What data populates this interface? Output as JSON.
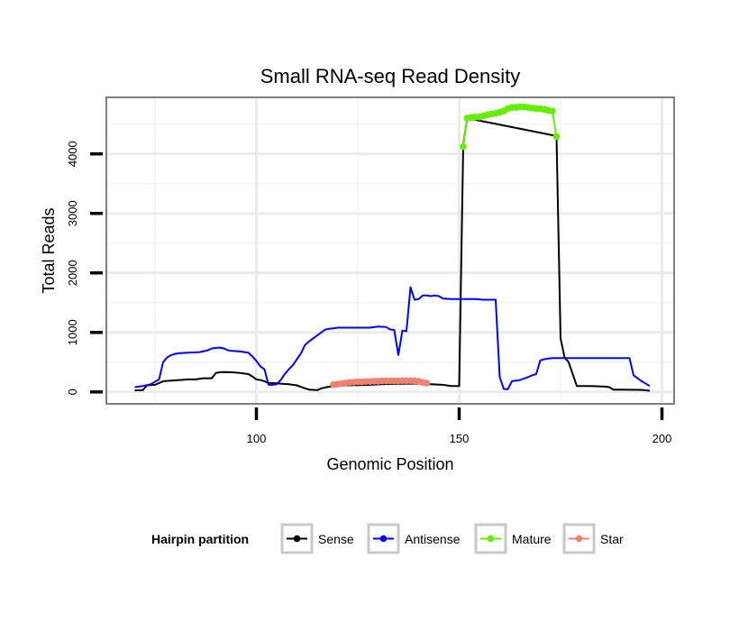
{
  "chart_data": {
    "type": "line",
    "title": "Small RNA-seq Read Density",
    "xlabel": "Genomic Position",
    "ylabel": "Total Reads",
    "xlim": [
      63,
      203
    ],
    "ylim": [
      -200,
      4950
    ],
    "x_ticks": [
      100,
      150,
      200
    ],
    "y_ticks": [
      0,
      1000,
      2000,
      3000,
      4000
    ],
    "grid": true,
    "legend_position": "bottom",
    "legend_title": "Hairpin partition",
    "legend": [
      {
        "name": "Sense",
        "color": "#000000"
      },
      {
        "name": "Antisense",
        "color": "#0000ff"
      },
      {
        "name": "Mature",
        "color": "#66ee00"
      },
      {
        "name": "Star",
        "color": "#f08070"
      }
    ],
    "series": [
      {
        "name": "Sense",
        "color": "#000000",
        "style": "line",
        "x": [
          70,
          72,
          73,
          75,
          77,
          79,
          81,
          83,
          85,
          87,
          89,
          90,
          91,
          92,
          94,
          96,
          98,
          99,
          100,
          101,
          102,
          103,
          104,
          106,
          108,
          110,
          112,
          113,
          115,
          116,
          118,
          120,
          122,
          125,
          128,
          131,
          134,
          137,
          140,
          143,
          146,
          148,
          149,
          150,
          151,
          152,
          174,
          175,
          176,
          177,
          178,
          179,
          180,
          182,
          184,
          186,
          187,
          188,
          190,
          195,
          197
        ],
        "y": [
          25,
          30,
          110,
          120,
          180,
          190,
          200,
          210,
          210,
          230,
          230,
          320,
          330,
          335,
          330,
          320,
          300,
          260,
          210,
          200,
          180,
          150,
          150,
          140,
          130,
          110,
          60,
          40,
          30,
          60,
          90,
          100,
          110,
          115,
          120,
          130,
          135,
          140,
          140,
          130,
          120,
          100,
          100,
          100,
          4150,
          4600,
          4300,
          900,
          580,
          500,
          300,
          100,
          100,
          100,
          95,
          90,
          80,
          40,
          40,
          35,
          20
        ]
      },
      {
        "name": "Antisense",
        "color": "#0000ff",
        "style": "line",
        "x": [
          70,
          72,
          74,
          76,
          77,
          78,
          79,
          80,
          81,
          83,
          86,
          88,
          89,
          90,
          91,
          92,
          93,
          94,
          96,
          98,
          99,
          100,
          101,
          102,
          103,
          104,
          105,
          106,
          107,
          108,
          109,
          110,
          111,
          112,
          113,
          114,
          115,
          116,
          117,
          118,
          119,
          120,
          122,
          124,
          126,
          128,
          130,
          132,
          133,
          134,
          135,
          136,
          137,
          138,
          139,
          140,
          141,
          142,
          143,
          144,
          145,
          146,
          148,
          150,
          152,
          154,
          156,
          158,
          159,
          160,
          161,
          162,
          163,
          165,
          167,
          168,
          169,
          170,
          171,
          172,
          173,
          175,
          180,
          185,
          190,
          192,
          193,
          195,
          197
        ],
        "y": [
          80,
          100,
          130,
          210,
          500,
          580,
          620,
          640,
          650,
          660,
          670,
          700,
          730,
          740,
          745,
          730,
          700,
          690,
          680,
          660,
          600,
          520,
          430,
          380,
          120,
          120,
          130,
          200,
          300,
          380,
          450,
          550,
          650,
          790,
          850,
          900,
          950,
          1000,
          1050,
          1060,
          1070,
          1080,
          1080,
          1080,
          1080,
          1080,
          1100,
          1090,
          1050,
          1040,
          620,
          1030,
          1020,
          1760,
          1550,
          1560,
          1620,
          1620,
          1610,
          1620,
          1610,
          1570,
          1560,
          1560,
          1560,
          1560,
          1550,
          1550,
          1550,
          250,
          50,
          45,
          180,
          200,
          250,
          280,
          300,
          530,
          550,
          560,
          570,
          570,
          570,
          570,
          570,
          570,
          280,
          180,
          100
        ]
      },
      {
        "name": "Mature",
        "color": "#66ee00",
        "style": "points",
        "x": [
          151,
          152,
          153,
          154,
          155,
          156,
          157,
          158,
          159,
          160,
          161,
          162,
          163,
          164,
          165,
          166,
          167,
          168,
          169,
          170,
          171,
          172,
          173,
          174
        ],
        "y": [
          4120,
          4600,
          4610,
          4620,
          4620,
          4640,
          4660,
          4670,
          4680,
          4700,
          4720,
          4760,
          4780,
          4780,
          4790,
          4790,
          4780,
          4770,
          4760,
          4760,
          4750,
          4730,
          4720,
          4290
        ]
      },
      {
        "name": "Star",
        "color": "#f08070",
        "style": "points",
        "x": [
          119,
          120,
          121,
          122,
          123,
          124,
          125,
          126,
          127,
          128,
          129,
          130,
          131,
          132,
          133,
          134,
          135,
          136,
          137,
          138,
          139,
          140,
          141,
          142
        ],
        "y": [
          125,
          130,
          140,
          150,
          160,
          165,
          170,
          170,
          175,
          175,
          180,
          180,
          185,
          185,
          185,
          185,
          185,
          190,
          190,
          190,
          185,
          180,
          160,
          150
        ]
      }
    ]
  }
}
